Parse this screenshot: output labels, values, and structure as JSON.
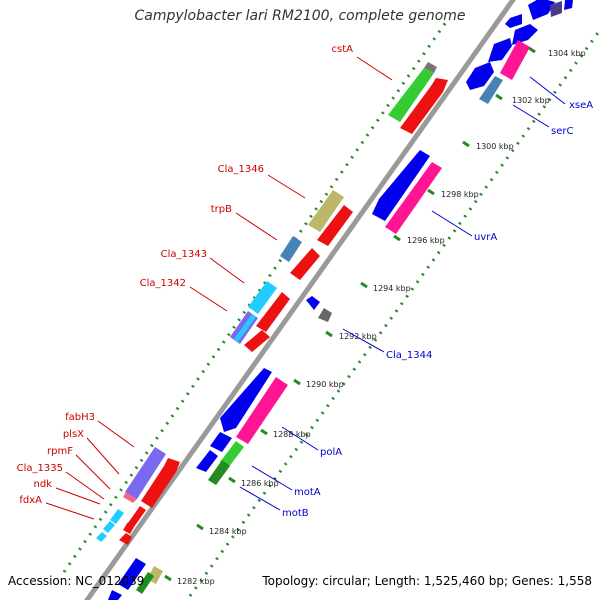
{
  "title": "Campylobacter lari RM2100, complete genome",
  "footer": {
    "accession": "Accession: NC_012039",
    "topology": "Topology: circular; Length: 1,525,460 bp; Genes: 1,558"
  },
  "colors": {
    "forward_label": "#cc0000",
    "reverse_label": "#0000cc",
    "backbone": "#9a9a9a",
    "ticks": "#228b22"
  },
  "tick_labels": [
    "1282 kbp",
    "1284 kbp",
    "1286 kbp",
    "1288 kbp",
    "1290 kbp",
    "1292 kbp",
    "1294 kbp",
    "1296 kbp",
    "1298 kbp",
    "1300 kbp",
    "1302 kbp",
    "1304 kbp"
  ],
  "gene_labels": {
    "forward": [
      "cstA",
      "Cla_1346",
      "trpB",
      "Cla_1343",
      "Cla_1342",
      "fabH3",
      "plsX",
      "rpmF",
      "Cla_1335",
      "ndk",
      "fdxA"
    ],
    "reverse": [
      "xseA",
      "serC",
      "uvrA",
      "Cla_1344",
      "polA",
      "motA",
      "motB"
    ]
  }
}
